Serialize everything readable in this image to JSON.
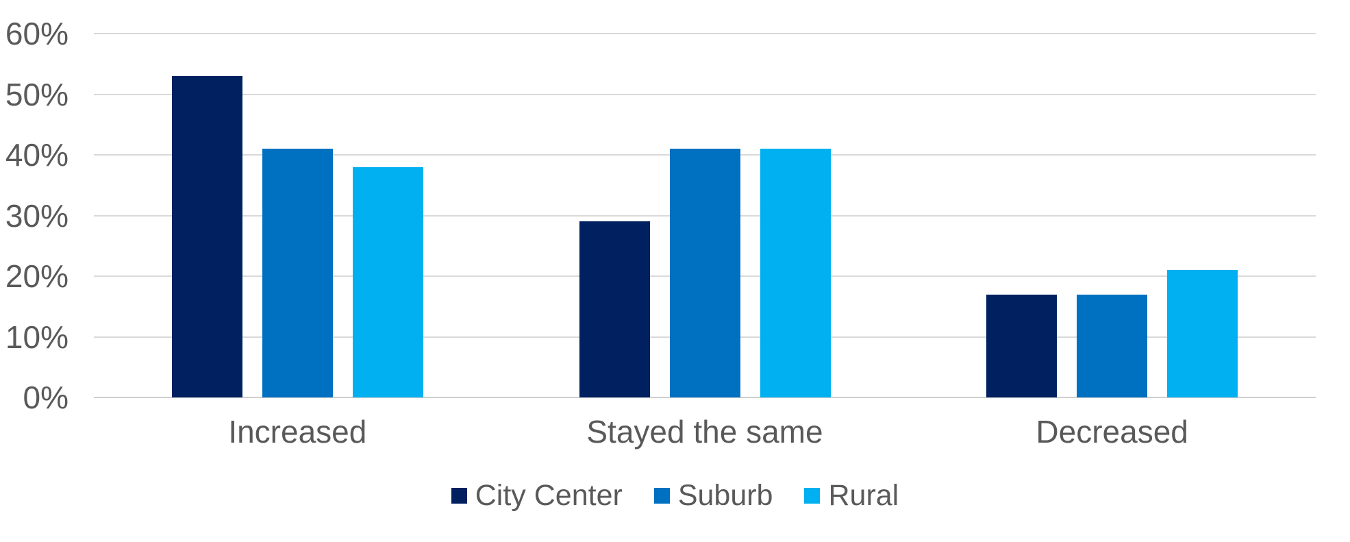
{
  "chart_data": {
    "type": "bar",
    "title": "",
    "xlabel": "",
    "ylabel": "",
    "categories": [
      "Increased",
      "Stayed the same",
      "Decreased"
    ],
    "series": [
      {
        "name": "City Center",
        "color": "#002060",
        "values": [
          53,
          29,
          17
        ]
      },
      {
        "name": "Suburb",
        "color": "#0070C0",
        "values": [
          41,
          41,
          17
        ]
      },
      {
        "name": "Rural",
        "color": "#00B0F0",
        "values": [
          38,
          41,
          21
        ]
      }
    ],
    "ylim": [
      0,
      60
    ],
    "y_tick_step": 10,
    "y_tick_labels": [
      "0%",
      "10%",
      "20%",
      "30%",
      "40%",
      "50%",
      "60%"
    ],
    "grid": "horizontal",
    "legend_position": "bottom"
  },
  "colors": {
    "background": "#ffffff",
    "gridline": "#d9d9d9",
    "axis_text": "#595959"
  }
}
